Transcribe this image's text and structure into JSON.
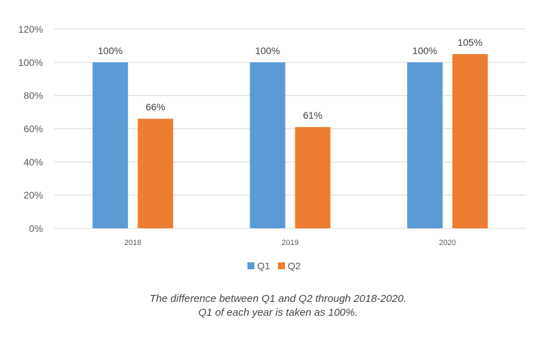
{
  "chart_data": {
    "type": "bar",
    "categories": [
      "2018",
      "2019",
      "2020"
    ],
    "series": [
      {
        "name": "Q1",
        "values": [
          100,
          100,
          100
        ],
        "color": "#5B9BD5"
      },
      {
        "name": "Q2",
        "values": [
          66,
          61,
          105
        ],
        "color": "#ED7D31"
      }
    ],
    "data_labels": [
      [
        "100%",
        "100%",
        "100%"
      ],
      [
        "66%",
        "61%",
        "105%"
      ]
    ],
    "ylim": [
      0,
      120
    ],
    "y_ticks": [
      "0%",
      "20%",
      "40%",
      "60%",
      "80%",
      "100%",
      "120%"
    ],
    "y_tick_values": [
      0,
      20,
      40,
      60,
      80,
      100,
      120
    ],
    "grid": true,
    "legend": "bottom-center",
    "gridline_color": "#D9D9D9",
    "text_color": "#595959"
  },
  "caption": {
    "line1": "The difference between Q1 and Q2 through 2018-2020.",
    "line2": "Q1 of each year is taken as 100%."
  }
}
